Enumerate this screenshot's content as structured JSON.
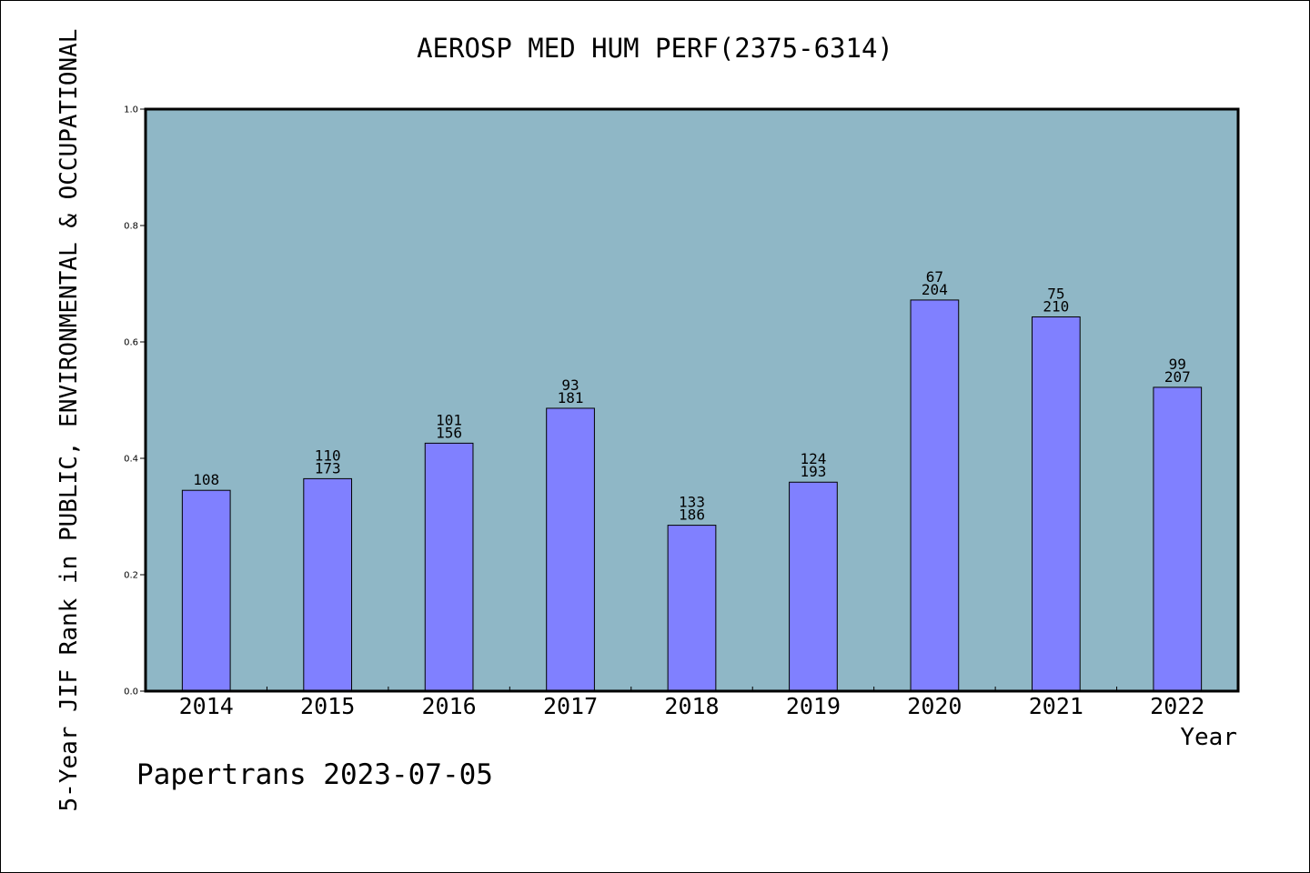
{
  "chart_data": {
    "type": "bar",
    "title": "AEROSP MED HUM PERF(2375-6314)",
    "xlabel": "Year",
    "ylabel": "5-Year JIF Rank in PUBLIC, ENVIRONMENTAL & OCCUPATIONAL",
    "categories": [
      "2014",
      "2015",
      "2016",
      "2017",
      "2018",
      "2019",
      "2020",
      "2021",
      "2022"
    ],
    "values": [
      0.345,
      0.365,
      0.426,
      0.486,
      0.285,
      0.359,
      0.672,
      0.643,
      0.522
    ],
    "bar_labels": [
      [
        "108"
      ],
      [
        "110",
        "173"
      ],
      [
        "101",
        "156"
      ],
      [
        "93",
        "181"
      ],
      [
        "133",
        "186"
      ],
      [
        "124",
        "193"
      ],
      [
        "67",
        "204"
      ],
      [
        "75",
        "210"
      ],
      [
        "99",
        "207"
      ]
    ],
    "ylim": [
      0,
      1
    ],
    "yticks": [
      "0.0",
      "0.2",
      "0.4",
      "0.6",
      "0.8",
      "1.0"
    ],
    "grid": false,
    "colors": {
      "plot_background": "#8fb7c6",
      "bar_fill": "#8080ff",
      "bar_edge": "#000000"
    }
  },
  "footer": {
    "watermark": "Papertrans 2023-07-05"
  }
}
